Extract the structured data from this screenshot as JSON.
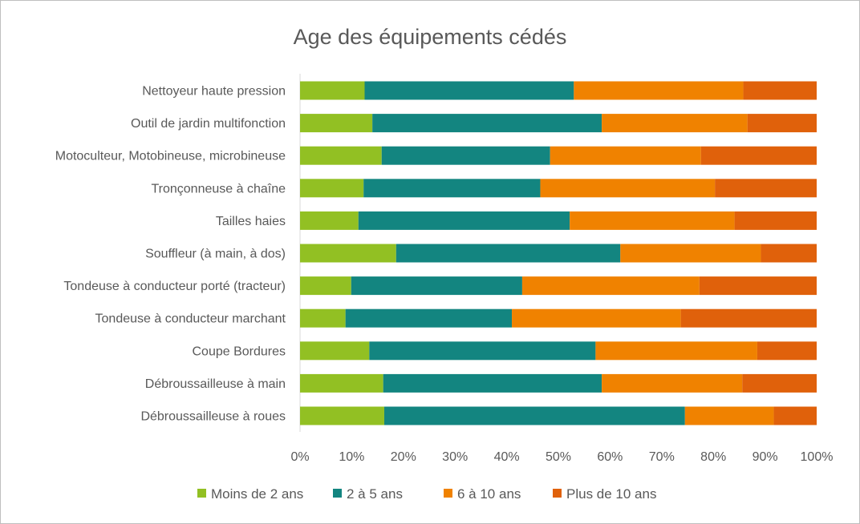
{
  "chart_data": {
    "type": "bar",
    "orientation": "horizontal",
    "stacked": "percent",
    "title": "Age des équipements  cédés",
    "categories": [
      "Nettoyeur haute pression",
      "Outil de jardin multifonction",
      "Motoculteur, Motobineuse, microbineuse",
      "Tronçonneuse à chaîne",
      "Tailles haies",
      "Souffleur (à main, à dos)",
      "Tondeuse à conducteur porté (tracteur)",
      "Tondeuse à conducteur marchant",
      "Coupe Bordures",
      "Débroussailleuse à main",
      "Débroussailleuse à roues"
    ],
    "series": [
      {
        "name": "Moins de 2 ans",
        "color": "#92c023",
        "values": [
          12.5,
          14.0,
          15.8,
          12.3,
          11.3,
          18.6,
          9.9,
          8.8,
          13.4,
          16.1,
          16.3
        ]
      },
      {
        "name": "2 à 5 ans",
        "color": "#138580",
        "values": [
          40.5,
          44.4,
          32.6,
          34.2,
          40.9,
          43.4,
          33.1,
          32.2,
          43.8,
          42.3,
          58.2
        ]
      },
      {
        "name": "6 à 10 ans",
        "color": "#f08200",
        "values": [
          32.8,
          28.2,
          29.2,
          33.8,
          31.9,
          27.2,
          34.3,
          32.7,
          31.3,
          27.2,
          17.2
        ]
      },
      {
        "name": "Plus de 10 ans",
        "color": "#e0610b",
        "values": [
          14.2,
          13.4,
          22.4,
          19.7,
          15.9,
          10.8,
          22.7,
          26.3,
          11.5,
          14.4,
          8.3
        ]
      }
    ],
    "xlim": [
      0,
      100
    ],
    "xticks": [
      "0%",
      "10%",
      "20%",
      "30%",
      "40%",
      "50%",
      "60%",
      "70%",
      "80%",
      "90%",
      "100%"
    ],
    "grid": false,
    "legend_position": "bottom"
  }
}
